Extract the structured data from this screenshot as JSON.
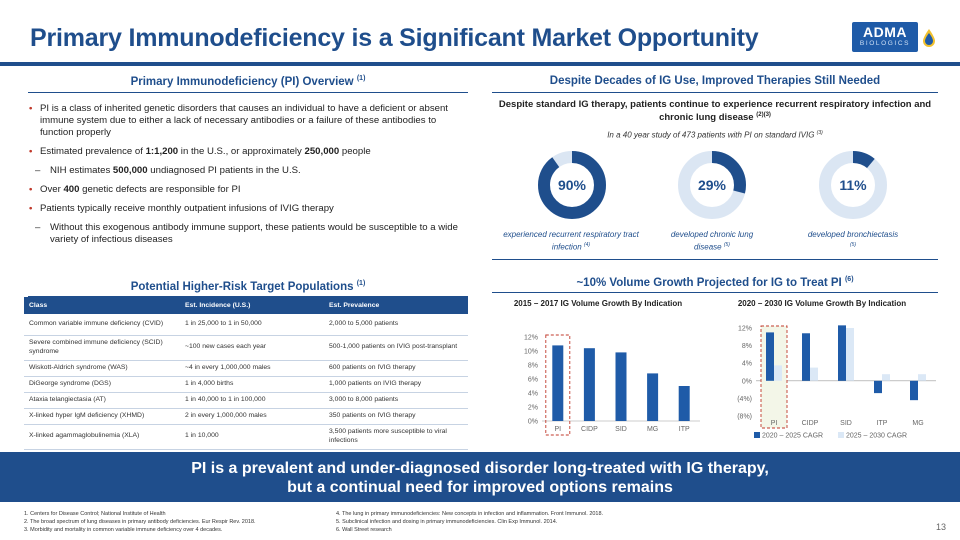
{
  "header": {
    "title": "Primary Immunodeficiency is a Significant Market Opportunity",
    "logo_main": "ADMA",
    "logo_sub": "BIOLOGICS"
  },
  "overview": {
    "title": "Primary Immunodeficiency  (PI) Overview",
    "title_ref": "(1)",
    "b1": "PI is a class of inherited genetic disorders that causes an individual to have a deficient or absent immune system due to either a lack of necessary antibodies or a failure of these antibodies to function properly",
    "b2_pre": "Estimated prevalence of ",
    "b2_bold1": "1:1,200",
    "b2_mid": " in the U.S., or approximately ",
    "b2_bold2": "250,000",
    "b2_post": " people",
    "s1_pre": "NIH estimates ",
    "s1_bold": "500,000",
    "s1_post": " undiagnosed PI patients in the U.S.",
    "b3_pre": "Over ",
    "b3_bold": "400",
    "b3_post": " genetic defects are responsible for PI",
    "b4": "Patients typically receive monthly outpatient infusions of IVIG therapy",
    "s2": "Without this exogenous antibody immune support, these patients would be susceptible to a wide variety of infectious diseases"
  },
  "populations": {
    "title": "Potential Higher-Risk Target Populations",
    "title_ref": "(1)",
    "headers": [
      "Class",
      "Est. Incidence (U.S.)",
      "Est. Prevalence"
    ],
    "rows": [
      [
        "Common variable immune deficiency (CVID)",
        "1 in 25,000 to 1 in 50,000",
        "2,000 to 5,000 patients"
      ],
      [
        "Severe combined immune deficiency (SCID) syndrome",
        "~100 new cases each year",
        "500-1,000 patients on IVIG post-transplant"
      ],
      [
        "Wiskott-Aldrich syndrome (WAS)",
        "~4 in every 1,000,000 males",
        "600 patients on IVIG therapy"
      ],
      [
        "DiGeorge syndrome (DGS)",
        "1 in 4,000 births",
        "1,000 patients on IVIG therapy"
      ],
      [
        "Ataxia telangiectasia (AT)",
        "1 in 40,000 to 1 in 100,000",
        "3,000 to 8,000 patients"
      ],
      [
        "X-linked hyper IgM deficiency (XHMD)",
        "2 in every 1,000,000 males",
        "350 patients on IVIG therapy"
      ],
      [
        "X-linked agammaglobulinemia (XLA)",
        "1 in 10,000",
        "3,500 patients more susceptible to viral infections"
      ]
    ]
  },
  "therapies": {
    "title": "Despite Decades of IG Use, Improved Therapies Still Needed",
    "subtitle": "Despite standard IG therapy, patients continue to experience recurrent respiratory infection and chronic lung disease",
    "subtitle_ref": "(2)(3)",
    "study": "In a 40 year study of 473 patients with PI on standard IVIG",
    "study_ref": "(3)",
    "donuts": [
      {
        "pct": 90,
        "label": "90%",
        "caption": "experienced recurrent respiratory tract infection",
        "ref": "(4)"
      },
      {
        "pct": 29,
        "label": "29%",
        "caption": "developed chronic lung disease",
        "ref": "(5)"
      },
      {
        "pct": 11,
        "label": "11%",
        "caption": "developed bronchiectasis",
        "ref": "(5)"
      }
    ]
  },
  "growth": {
    "title": "~10% Volume Growth Projected for IG to Treat PI",
    "title_ref": "(6)"
  },
  "chart_data": [
    {
      "type": "bar",
      "title": "2015 – 2017 IG Volume Growth By Indication",
      "categories": [
        "PI",
        "CIDP",
        "SID",
        "MG",
        "ITP"
      ],
      "values": [
        10.8,
        10.4,
        9.8,
        6.8,
        5.0
      ],
      "ylim": [
        0,
        12
      ],
      "yticks": [
        "0%",
        "2%",
        "4%",
        "6%",
        "8%",
        "10%",
        "12%"
      ],
      "color": "#1f5ba8"
    },
    {
      "type": "bar",
      "title": "2020 – 2030 IG Volume Growth By Indication",
      "categories": [
        "PI",
        "CIDP",
        "SID",
        "ITP",
        "MG"
      ],
      "series": [
        {
          "name": "2020 – 2025 CAGR",
          "values": [
            11.0,
            10.8,
            12.6,
            -2.8,
            -4.4
          ],
          "color": "#1f5ba8"
        },
        {
          "name": "2025 – 2030 CAGR",
          "values": [
            3.5,
            3.0,
            12.0,
            1.5,
            1.5
          ],
          "color": "#dbe8f6"
        }
      ],
      "ylim": [
        -8,
        12
      ],
      "yticks": [
        "(8%)",
        "(4%)",
        "0%",
        "4%",
        "8%",
        "12%"
      ]
    }
  ],
  "banner": {
    "line1": "PI is a prevalent and under-diagnosed disorder long-treated with IG therapy,",
    "line2": "but a continual need for improved options remains"
  },
  "footnotes": {
    "left": [
      "1. Centers for Disease Control; National Institute of Health",
      "2. The broad spectrum of lung diseases in primary antibody deficiencies. Eur Respir Rev. 2018.",
      "3. Morbidity and mortality in common variable immune deficiency over 4 decades."
    ],
    "right": [
      "4. The lung in primary immunodeficiencies: New concepts in infection and inflammation. Front Immunol. 2018.",
      "5. Subclinical infection and dosing in primary immunodeficiencies. Clin Exp Immunol. 2014.",
      "6. Wall Street research"
    ]
  },
  "page_number": "13",
  "colors": {
    "primary": "#1f4e8c",
    "accent_bar": "#1f5ba8",
    "light_bar": "#dbe8f6",
    "donut_track": "#dbe6f3",
    "highlight": "#c0392b"
  }
}
